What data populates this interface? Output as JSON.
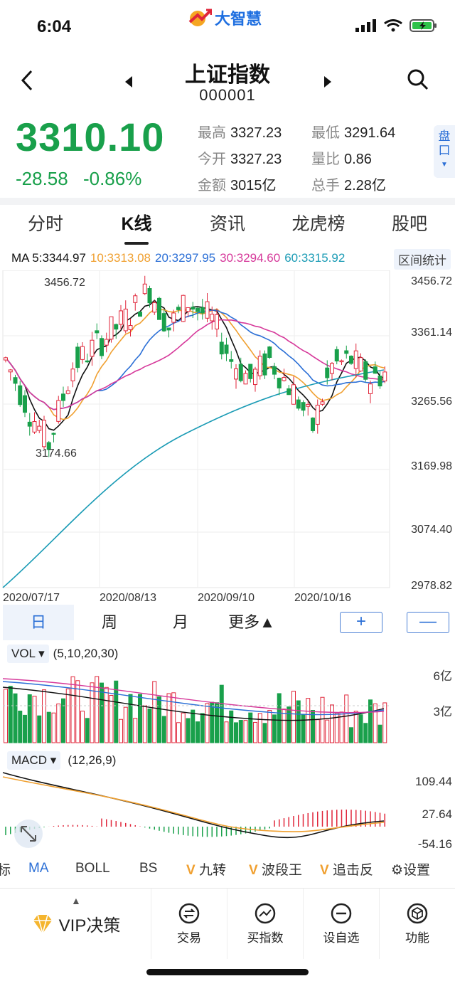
{
  "status_bar": {
    "time": "6:04",
    "logo_text": "大智慧"
  },
  "nav": {
    "title": "上证指数",
    "code": "000001"
  },
  "quote": {
    "price": "3310.10",
    "change": "-28.58",
    "change_pct": "-0.86%",
    "stats": [
      {
        "label": "最高",
        "value": "3327.23"
      },
      {
        "label": "最低",
        "value": "3291.64"
      },
      {
        "label": "今开",
        "value": "3327.23"
      },
      {
        "label": "量比",
        "value": "0.86"
      },
      {
        "label": "金额",
        "value": "3015亿"
      },
      {
        "label": "总手",
        "value": "2.28亿"
      }
    ],
    "pankou_label": "盘口"
  },
  "tabs": [
    "分时",
    "K线",
    "资讯",
    "龙虎榜",
    "股吧"
  ],
  "ma_legend": {
    "ma5": "MA 5:3344.97",
    "ma10": "10:3313.08",
    "ma20": "20:3297.95",
    "ma30": "30:3294.60",
    "ma60": "60:3315.92",
    "range_btn": "区间统计"
  },
  "colors": {
    "up": "#e0263a",
    "down": "#19a04b",
    "ma5": "#111111",
    "ma10": "#f0a030",
    "ma20": "#2b6fd6",
    "ma30": "#d6389a",
    "ma60": "#1a9bb5",
    "accent": "#2b6fd6"
  },
  "kline": {
    "y_ticks": [
      "3456.72",
      "3361.14",
      "3265.56",
      "3169.98",
      "3074.40",
      "2978.82"
    ],
    "x_ticks": [
      "2020/07/17",
      "2020/08/13",
      "2020/09/10",
      "2020/10/16"
    ],
    "high_label": "3456.72",
    "low_label": "3174.66",
    "ylim": [
      2978.82,
      3456.72
    ]
  },
  "periods": [
    "日",
    "周",
    "月",
    "更多▲"
  ],
  "zoom": {
    "plus": "+",
    "minus": "—"
  },
  "vol": {
    "name": "VOL ▾",
    "params": "(5,10,20,30)",
    "y_ticks": [
      "6亿",
      "3亿"
    ]
  },
  "macd": {
    "name": "MACD ▾",
    "params": "(12,26,9)",
    "y_ticks": [
      "109.44",
      "27.64",
      "-54.16"
    ]
  },
  "indicator_tabs": [
    "标",
    "MA",
    "BOLL",
    "BS",
    "九转",
    "波段王",
    "追击反",
    "设置"
  ],
  "bottom_nav": {
    "vip": "VIP决策",
    "items": [
      "交易",
      "买指数",
      "设自选",
      "功能"
    ]
  }
}
